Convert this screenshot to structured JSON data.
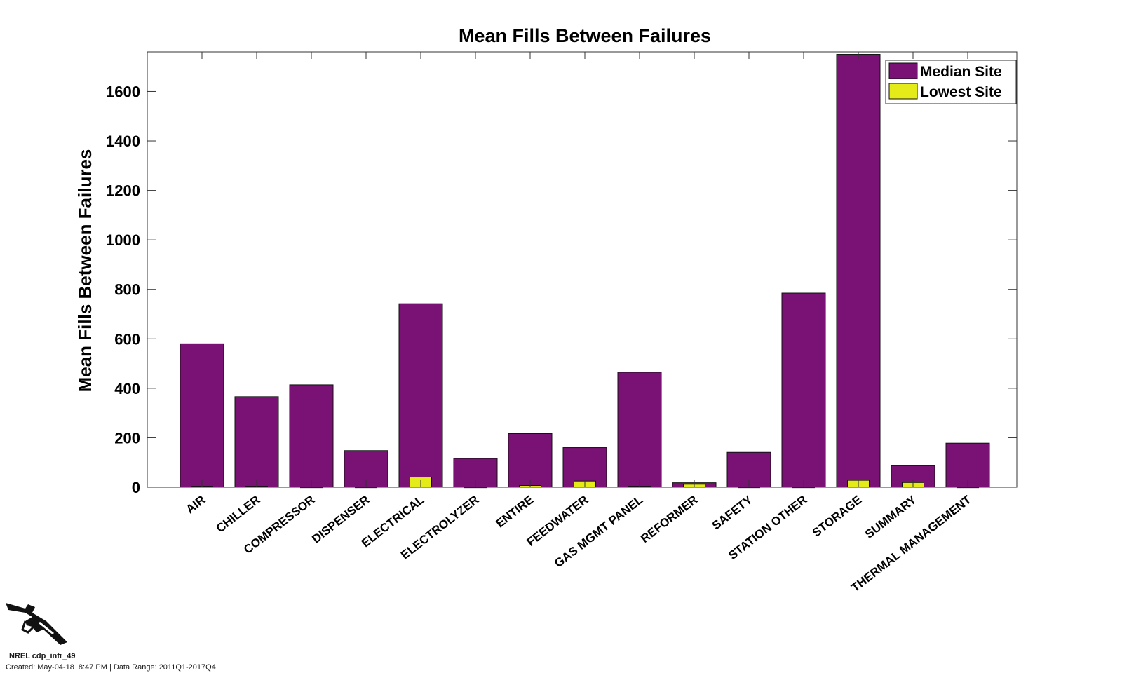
{
  "chart_data": {
    "type": "bar",
    "title": "Mean Fills Between Failures",
    "xlabel": "",
    "ylabel": "Mean Fills Between Failures",
    "ylim": [
      0,
      1760
    ],
    "yticks": [
      0,
      200,
      400,
      600,
      800,
      1000,
      1200,
      1400,
      1600
    ],
    "categories": [
      "AIR",
      "CHILLER",
      "COMPRESSOR",
      "DISPENSER",
      "ELECTRICAL",
      "ELECTROLYZER",
      "ENTIRE",
      "FEEDWATER",
      "GAS MGMT PANEL",
      "REFORMER",
      "SAFETY",
      "STATION OTHER",
      "STORAGE",
      "SUMMARY",
      "THERMAL MANAGEMENT"
    ],
    "series": [
      {
        "name": "Median Site",
        "color": "#7a1174",
        "values": [
          580,
          366,
          414,
          148,
          742,
          116,
          217,
          160,
          465,
          18,
          141,
          785,
          1750,
          87,
          178
        ]
      },
      {
        "name": "Lowest Site",
        "color": "#e5ea19",
        "values": [
          4,
          4,
          1,
          1,
          41,
          1,
          7,
          25,
          4,
          12,
          1,
          1,
          28,
          19,
          1
        ]
      }
    ],
    "grid": false,
    "legend_position": "top-right"
  },
  "footer": {
    "id": "NREL cdp_infr_49",
    "meta": "Created: May-04-18  8:47 PM | Data Range: 2011Q1-2017Q4"
  },
  "logo_icon": "fuel-nozzle-icon"
}
